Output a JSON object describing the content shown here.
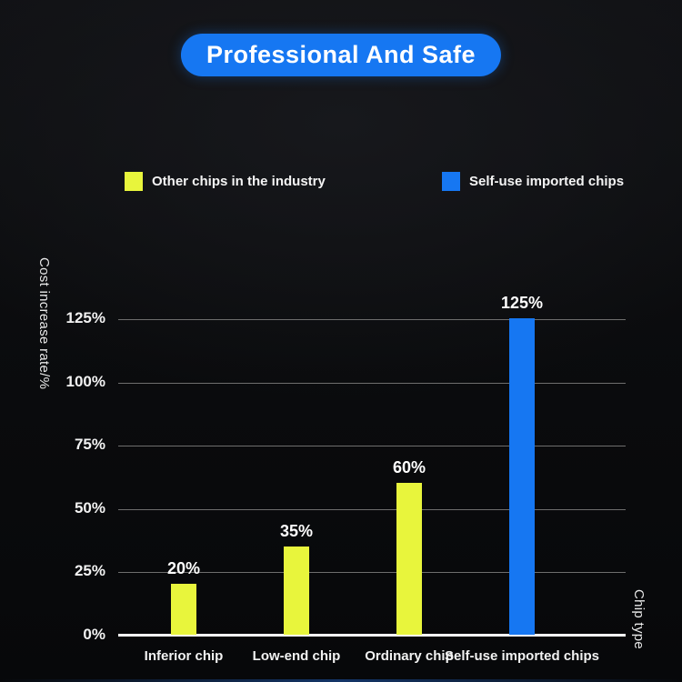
{
  "header": {
    "title": "Professional And Safe",
    "accent_color": "#1677f2"
  },
  "legend": [
    {
      "label": "Other chips in the industry",
      "color": "#e8f53c"
    },
    {
      "label": "Self-use imported chips",
      "color": "#1677f2"
    }
  ],
  "chart_data": {
    "type": "bar",
    "title": "",
    "categories": [
      "Inferior chip",
      "Low-end chip",
      "Ordinary chip",
      "Self-use imported chips"
    ],
    "values": [
      20,
      35,
      60,
      125
    ],
    "data_labels": [
      "20%",
      "35%",
      "60%",
      "125%"
    ],
    "bar_colors": [
      "#e8f53c",
      "#e8f53c",
      "#e8f53c",
      "#1677f2"
    ],
    "xlabel": "Chip type",
    "ylabel": "Cost increase rate/%",
    "yticks": [
      0,
      25,
      50,
      75,
      100,
      125
    ],
    "ytick_labels": [
      "0%",
      "25%",
      "50%",
      "75%",
      "100%",
      "125%"
    ],
    "ylim": [
      0,
      125
    ],
    "grid": true,
    "legend_position": "top"
  }
}
